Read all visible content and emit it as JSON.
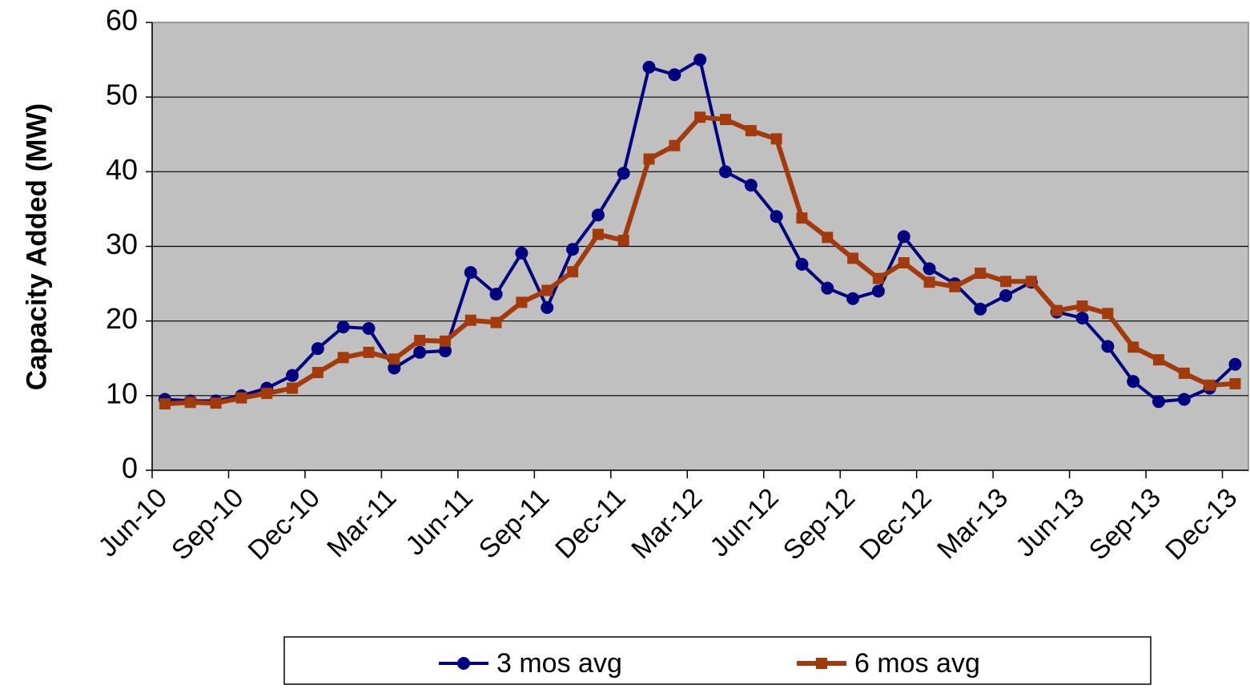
{
  "chart_data": {
    "type": "line",
    "y_label": "Capacity Added (MW)",
    "categories": [
      "Jun-10",
      null,
      null,
      "Sep-10",
      null,
      null,
      "Dec-10",
      null,
      null,
      "Mar-11",
      null,
      null,
      "Jun-11",
      null,
      null,
      "Sep-11",
      null,
      null,
      "Dec-11",
      null,
      null,
      "Mar-12",
      null,
      null,
      "Jun-12",
      null,
      null,
      "Sep-12",
      null,
      null,
      "Dec-12",
      null,
      null,
      "Mar-13",
      null,
      null,
      "Jun-13",
      null,
      null,
      "Sep-13",
      null,
      null,
      "Dec-13"
    ],
    "series": [
      {
        "name": "3 mos avg",
        "color": "#000080",
        "marker": "circle",
        "values": [
          9.5,
          9.3,
          9.3,
          10,
          11,
          12.7,
          16.3,
          19.2,
          19,
          13.7,
          15.8,
          16,
          26.5,
          23.6,
          29.1,
          21.8,
          29.6,
          34.2,
          39.8,
          54,
          53,
          55,
          40,
          38.2,
          34,
          27.6,
          24.4,
          23,
          24,
          31.3,
          27,
          25,
          21.6,
          23.4,
          25.2,
          21.2,
          20.4,
          16.6,
          11.9,
          9.2,
          9.5,
          11,
          14.2
        ]
      },
      {
        "name": "6 mos avg",
        "color": "#a33a0c",
        "marker": "square",
        "values": [
          8.9,
          9.1,
          9,
          9.7,
          10.3,
          11,
          13.1,
          15.1,
          15.8,
          14.9,
          17.4,
          17.3,
          20.1,
          19.8,
          22.5,
          24.1,
          26.6,
          31.6,
          30.8,
          41.7,
          43.5,
          47.3,
          47,
          45.5,
          44.4,
          33.8,
          31.2,
          28.4,
          25.7,
          27.8,
          25.2,
          24.6,
          26.4,
          25.3,
          25.3,
          21.4,
          22,
          21,
          16.5,
          14.8,
          13,
          11.4,
          11.6
        ]
      }
    ],
    "ylim": [
      0,
      60
    ],
    "yticks": [
      0,
      10,
      20,
      30,
      40,
      50,
      60
    ],
    "grid": true,
    "legend": "bottom"
  }
}
